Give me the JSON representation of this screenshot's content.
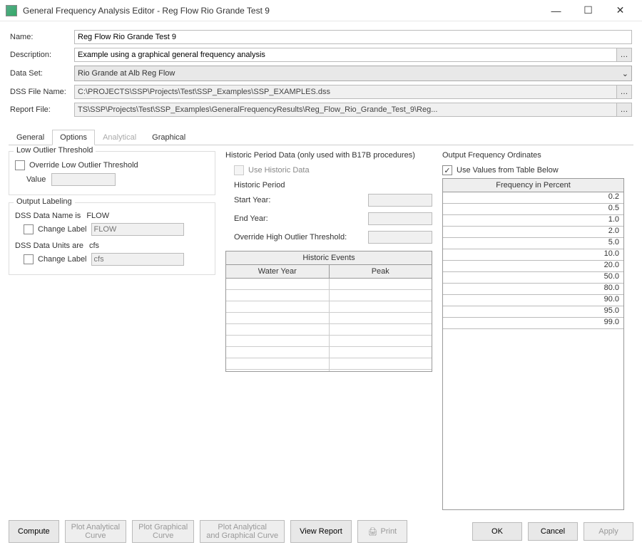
{
  "window": {
    "title": "General Frequency Analysis Editor - Reg Flow Rio Grande Test 9"
  },
  "form": {
    "name_label": "Name:",
    "name_value": "Reg Flow Rio Grande Test 9",
    "description_label": "Description:",
    "description_value": "Example using a graphical general frequency analysis",
    "dataset_label": "Data Set:",
    "dataset_value": "Rio Grande at Alb Reg Flow",
    "dssfile_label": "DSS File Name:",
    "dssfile_value": "C:\\PROJECTS\\SSP\\Projects\\Test\\SSP_Examples\\SSP_EXAMPLES.dss",
    "reportfile_label": "Report File:",
    "reportfile_value": "TS\\SSP\\Projects\\Test\\SSP_Examples\\GeneralFrequencyResults\\Reg_Flow_Rio_Grande_Test_9\\Reg..."
  },
  "tabs": {
    "general": "General",
    "options": "Options",
    "analytical": "Analytical",
    "graphical": "Graphical"
  },
  "low_outlier": {
    "group_title": "Low Outlier Threshold",
    "override_label": "Override Low Outlier Threshold",
    "value_label": "Value",
    "value": ""
  },
  "output_labeling": {
    "group_title": "Output Labeling",
    "dss_name_is": "DSS Data Name is",
    "dss_name_value": "FLOW",
    "change_label": "Change Label",
    "flow_placeholder": "FLOW",
    "dss_units_are": "DSS Data Units are",
    "dss_units_value": "cfs",
    "cfs_placeholder": "cfs"
  },
  "historic": {
    "section_title": "Historic Period Data (only used with B17B procedures)",
    "use_historic_label": "Use Historic Data",
    "period_title": "Historic Period",
    "start_year_label": "Start Year:",
    "end_year_label": "End Year:",
    "override_high_label": "Override High Outlier Threshold:",
    "events_title": "Historic Events",
    "col_water_year": "Water Year",
    "col_peak": "Peak",
    "rows": [
      "",
      "",
      "",
      "",
      "",
      "",
      "",
      "",
      ""
    ]
  },
  "output_freq": {
    "section_title": "Output Frequency Ordinates",
    "use_values_label": "Use Values from Table Below",
    "hdr": "Frequency in Percent",
    "values": [
      "0.2",
      "0.5",
      "1.0",
      "2.0",
      "5.0",
      "10.0",
      "20.0",
      "50.0",
      "80.0",
      "90.0",
      "95.0",
      "99.0"
    ]
  },
  "buttons": {
    "compute": "Compute",
    "plot_analytical_curve_l1": "Plot Analytical",
    "plot_analytical_curve_l2": "Curve",
    "plot_graphical_curve_l1": "Plot Graphical",
    "plot_graphical_curve_l2": "Curve",
    "plot_both_l1": "Plot Analytical",
    "plot_both_l2": "and Graphical Curve",
    "view_report": "View Report",
    "print": "Print",
    "ok": "OK",
    "cancel": "Cancel",
    "apply": "Apply"
  }
}
